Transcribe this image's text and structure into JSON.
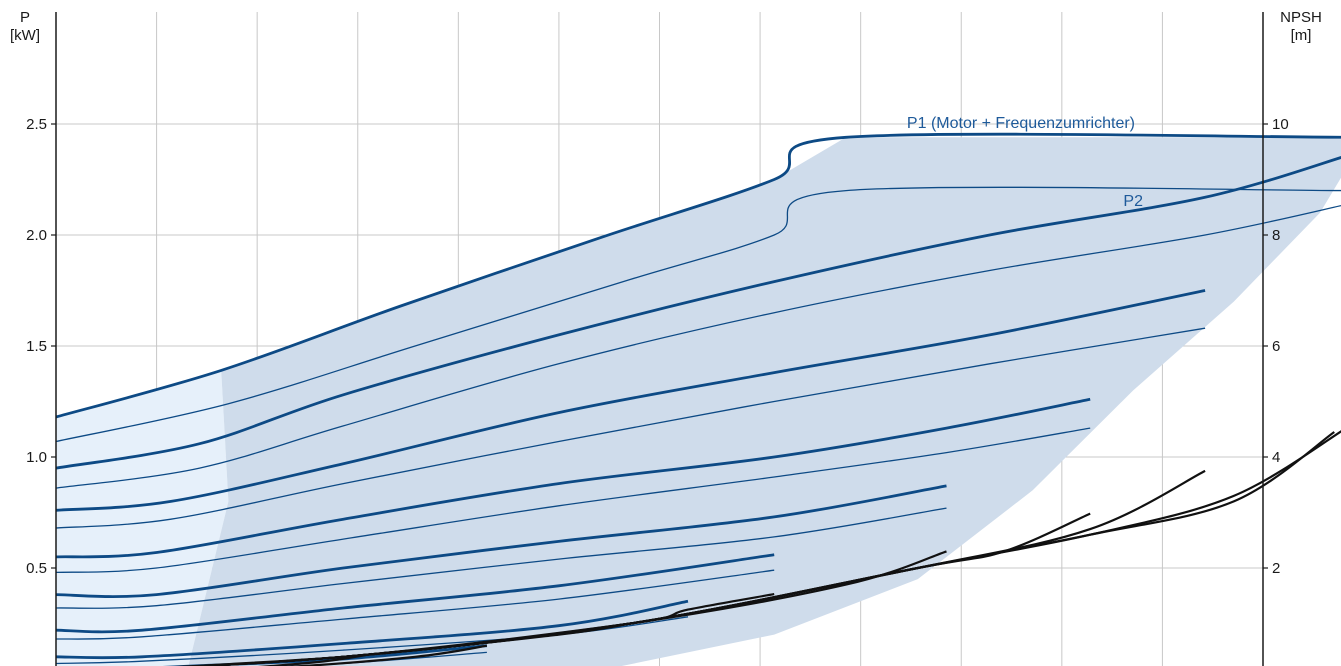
{
  "chart_data": {
    "type": "line",
    "left_axis": {
      "title_line1": "P",
      "title_line2": "[kW]",
      "ticks": [
        "0.5",
        "1.0",
        "1.5",
        "2.0",
        "2.5"
      ],
      "tick_values": [
        0.5,
        1.0,
        1.5,
        2.0,
        2.5
      ],
      "ylim": [
        0,
        3.0
      ]
    },
    "right_axis": {
      "title_line1": "NPSH",
      "title_line2": "[m]",
      "ticks": [
        "2",
        "4",
        "6",
        "8",
        "10"
      ],
      "tick_values": [
        2,
        4,
        6,
        8,
        10
      ],
      "ylim": [
        0,
        12
      ]
    },
    "x_grid_count": 12,
    "grid": true,
    "colors": {
      "power": "#0d4a85",
      "npsh": "#111111",
      "region_fill": "#cfdceb",
      "region_fill_light": "#e6f0fa",
      "grid": "#c8c8c8",
      "label": "#1e5a9a"
    },
    "annotations": {
      "p1": "P1 (Motor + Frequenzumrichter)",
      "p2": "P2"
    },
    "p1_curves": [
      [
        [
          0,
          1.18
        ],
        [
          0.115,
          1.39
        ],
        [
          0.24,
          1.68
        ],
        [
          0.38,
          1.99
        ],
        [
          0.5,
          2.25
        ],
        [
          0.55,
          2.44
        ],
        [
          0.9,
          2.44
        ]
      ],
      [
        [
          0,
          0.95
        ],
        [
          0.1,
          1.06
        ],
        [
          0.2,
          1.28
        ],
        [
          0.35,
          1.55
        ],
        [
          0.5,
          1.79
        ],
        [
          0.65,
          2.0
        ],
        [
          0.8,
          2.17
        ],
        [
          0.9,
          2.36
        ]
      ],
      [
        [
          0,
          0.76
        ],
        [
          0.08,
          0.8
        ],
        [
          0.2,
          0.97
        ],
        [
          0.35,
          1.2
        ],
        [
          0.5,
          1.38
        ],
        [
          0.65,
          1.55
        ],
        [
          0.8,
          1.75
        ]
      ],
      [
        [
          0,
          0.55
        ],
        [
          0.07,
          0.57
        ],
        [
          0.2,
          0.72
        ],
        [
          0.35,
          0.88
        ],
        [
          0.5,
          1.0
        ],
        [
          0.62,
          1.13
        ],
        [
          0.72,
          1.26
        ]
      ],
      [
        [
          0,
          0.38
        ],
        [
          0.07,
          0.38
        ],
        [
          0.2,
          0.5
        ],
        [
          0.35,
          0.62
        ],
        [
          0.5,
          0.73
        ],
        [
          0.62,
          0.87
        ]
      ],
      [
        [
          0,
          0.22
        ],
        [
          0.06,
          0.22
        ],
        [
          0.2,
          0.32
        ],
        [
          0.35,
          0.42
        ],
        [
          0.5,
          0.56
        ]
      ],
      [
        [
          0,
          0.1
        ],
        [
          0.06,
          0.1
        ],
        [
          0.2,
          0.16
        ],
        [
          0.35,
          0.24
        ],
        [
          0.44,
          0.35
        ]
      ],
      [
        [
          0,
          0.03
        ],
        [
          0.1,
          0.06
        ],
        [
          0.2,
          0.09
        ],
        [
          0.3,
          0.15
        ]
      ]
    ],
    "p2_curves": [
      [
        [
          0,
          1.07
        ],
        [
          0.12,
          1.24
        ],
        [
          0.25,
          1.5
        ],
        [
          0.4,
          1.8
        ],
        [
          0.5,
          2.0
        ],
        [
          0.55,
          2.2
        ],
        [
          0.9,
          2.2
        ]
      ],
      [
        [
          0,
          0.86
        ],
        [
          0.1,
          0.95
        ],
        [
          0.2,
          1.14
        ],
        [
          0.35,
          1.42
        ],
        [
          0.5,
          1.65
        ],
        [
          0.65,
          1.84
        ],
        [
          0.8,
          2.0
        ],
        [
          0.9,
          2.14
        ]
      ],
      [
        [
          0,
          0.68
        ],
        [
          0.08,
          0.72
        ],
        [
          0.2,
          0.88
        ],
        [
          0.35,
          1.07
        ],
        [
          0.5,
          1.25
        ],
        [
          0.65,
          1.42
        ],
        [
          0.8,
          1.58
        ]
      ],
      [
        [
          0,
          0.48
        ],
        [
          0.07,
          0.5
        ],
        [
          0.2,
          0.63
        ],
        [
          0.35,
          0.78
        ],
        [
          0.5,
          0.91
        ],
        [
          0.62,
          1.02
        ],
        [
          0.72,
          1.13
        ]
      ],
      [
        [
          0,
          0.32
        ],
        [
          0.07,
          0.33
        ],
        [
          0.2,
          0.43
        ],
        [
          0.35,
          0.54
        ],
        [
          0.5,
          0.64
        ],
        [
          0.62,
          0.77
        ]
      ],
      [
        [
          0,
          0.18
        ],
        [
          0.06,
          0.19
        ],
        [
          0.2,
          0.27
        ],
        [
          0.35,
          0.36
        ],
        [
          0.5,
          0.49
        ]
      ],
      [
        [
          0,
          0.07
        ],
        [
          0.06,
          0.08
        ],
        [
          0.2,
          0.13
        ],
        [
          0.35,
          0.2
        ],
        [
          0.44,
          0.28
        ]
      ],
      [
        [
          0,
          0.02
        ],
        [
          0.1,
          0.04
        ],
        [
          0.2,
          0.07
        ],
        [
          0.3,
          0.12
        ]
      ]
    ],
    "npsh_curves": [
      [
        [
          0,
          0.1
        ],
        [
          0.2,
          0.4
        ],
        [
          0.4,
          1.0
        ],
        [
          0.6,
          2.0
        ],
        [
          0.72,
          2.6
        ],
        [
          0.82,
          3.3
        ],
        [
          0.9,
          4.55
        ]
      ],
      [
        [
          0,
          0.1
        ],
        [
          0.2,
          0.4
        ],
        [
          0.4,
          1.0
        ],
        [
          0.6,
          2.0
        ],
        [
          0.72,
          2.6
        ],
        [
          0.82,
          3.2
        ],
        [
          0.89,
          4.45
        ]
      ],
      [
        [
          0,
          0.1
        ],
        [
          0.2,
          0.4
        ],
        [
          0.4,
          1.0
        ],
        [
          0.6,
          2.0
        ],
        [
          0.72,
          2.7
        ],
        [
          0.8,
          3.75
        ]
      ],
      [
        [
          0,
          0.1
        ],
        [
          0.2,
          0.4
        ],
        [
          0.4,
          1.0
        ],
        [
          0.6,
          2.0
        ],
        [
          0.66,
          2.3
        ],
        [
          0.72,
          2.98
        ]
      ],
      [
        [
          0,
          0.1
        ],
        [
          0.2,
          0.4
        ],
        [
          0.4,
          1.0
        ],
        [
          0.55,
          1.7
        ],
        [
          0.62,
          2.3
        ]
      ],
      [
        [
          0,
          0.1
        ],
        [
          0.2,
          0.4
        ],
        [
          0.4,
          1.0
        ],
        [
          0.44,
          1.25
        ],
        [
          0.5,
          1.53
        ]
      ],
      [
        [
          0,
          0.1
        ],
        [
          0.2,
          0.4
        ],
        [
          0.35,
          0.8
        ],
        [
          0.4,
          1.0
        ]
      ],
      [
        [
          0,
          0.05
        ],
        [
          0.15,
          0.2
        ],
        [
          0.25,
          0.4
        ],
        [
          0.3,
          0.6
        ]
      ],
      [
        [
          0,
          0.05
        ],
        [
          0.1,
          0.15
        ],
        [
          0.18,
          0.3
        ],
        [
          0.22,
          0.45
        ]
      ]
    ],
    "region_outline": [
      [
        0.09,
        0
      ],
      [
        0.12,
        0.8
      ],
      [
        0.115,
        1.39
      ],
      [
        0.24,
        1.68
      ],
      [
        0.38,
        1.99
      ],
      [
        0.5,
        2.25
      ],
      [
        0.55,
        2.44
      ],
      [
        0.9,
        2.44
      ],
      [
        0.905,
        2.37
      ],
      [
        0.88,
        2.1
      ],
      [
        0.82,
        1.7
      ],
      [
        0.75,
        1.3
      ],
      [
        0.68,
        0.85
      ],
      [
        0.6,
        0.45
      ],
      [
        0.5,
        0.2
      ],
      [
        0.35,
        0.0
      ]
    ],
    "region_light": [
      [
        0,
        1.18
      ],
      [
        0.115,
        1.39
      ],
      [
        0.12,
        0.8
      ],
      [
        0.09,
        0
      ],
      [
        0,
        0
      ]
    ]
  }
}
